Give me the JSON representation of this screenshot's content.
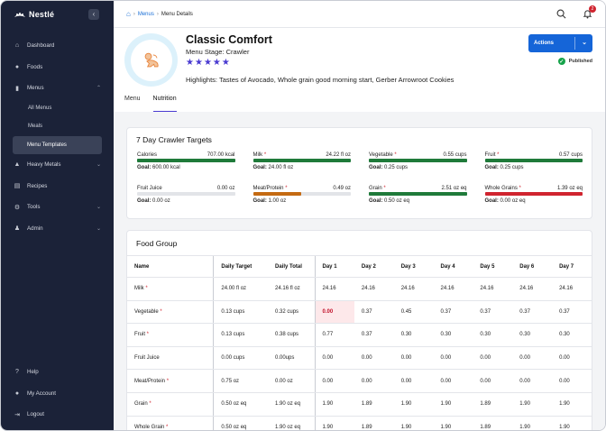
{
  "brand": {
    "name": "Nestlé"
  },
  "sidebar": {
    "items": [
      {
        "label": "Dashboard",
        "icon": "home-icon"
      },
      {
        "label": "Foods",
        "icon": "apple-icon"
      },
      {
        "label": "Menus",
        "icon": "book-icon",
        "expanded": true
      }
    ],
    "sub_items": [
      {
        "label": "All Menus"
      },
      {
        "label": "Meals"
      },
      {
        "label": "Menu Templates",
        "active": true
      }
    ],
    "items_after": [
      {
        "label": "Heavy Metals",
        "icon": "flask-icon"
      },
      {
        "label": "Recipes",
        "icon": "recipe-icon"
      },
      {
        "label": "Tools",
        "icon": "gear-icon"
      },
      {
        "label": "Admin",
        "icon": "users-icon"
      }
    ],
    "bottom": [
      {
        "label": "Help",
        "icon": "help-icon"
      },
      {
        "label": "My Account",
        "icon": "person-icon"
      },
      {
        "label": "Logout",
        "icon": "logout-icon"
      }
    ]
  },
  "breadcrumb": {
    "menus": "Menus",
    "current": "Menu Details"
  },
  "notifications": {
    "count": "2"
  },
  "menu": {
    "title": "Classic Comfort",
    "stage": "Menu Stage: Crawler",
    "rating": 5,
    "highlights": "Highlights: Tastes of Avocado, Whole grain good morning start, Gerber Arrowroot Cookies",
    "actions_label": "Actions",
    "status": "Published"
  },
  "tabs": [
    {
      "label": "Menu",
      "active": false
    },
    {
      "label": "Nutrition",
      "active": true
    }
  ],
  "targets": {
    "title": "7 Day Crawler Targets",
    "items": [
      {
        "label": "Calories",
        "req": false,
        "value": "707.00 kcal",
        "goal": "600.00 kcal",
        "progress": 1.0,
        "color": "#1f7a3a"
      },
      {
        "label": "Milk",
        "req": true,
        "value": "24.22 fl oz",
        "goal": "24.00 fl oz",
        "progress": 1.0,
        "color": "#1f7a3a"
      },
      {
        "label": "Vegetable",
        "req": true,
        "value": "0.55 cups",
        "goal": "0.25 cups",
        "progress": 1.0,
        "color": "#1f7a3a"
      },
      {
        "label": "Fruit",
        "req": true,
        "value": "0.57 cups",
        "goal": "0.25 cups",
        "progress": 1.0,
        "color": "#1f7a3a"
      },
      {
        "label": "Fruit Juice",
        "req": false,
        "value": "0.00 oz",
        "goal": "0.00 oz",
        "progress": 0.0,
        "color": "#1f7a3a"
      },
      {
        "label": "Meat/Protein",
        "req": true,
        "value": "0.49 oz",
        "goal": "1.00 oz",
        "progress": 0.49,
        "color": "#c46a12"
      },
      {
        "label": "Grain",
        "req": true,
        "value": "2.51 oz eq",
        "goal": "0.50 oz eq",
        "progress": 1.0,
        "color": "#1f7a3a"
      },
      {
        "label": "Whole Grains",
        "req": true,
        "value": "1.39 oz eq",
        "goal": "0.00 oz eq",
        "progress": 1.0,
        "color": "#d0242f"
      }
    ],
    "goal_label": "Goal:"
  },
  "food_group": {
    "title": "Food Group",
    "columns": [
      "Name",
      "Daily Target",
      "Daily Total",
      "Day 1",
      "Day 2",
      "Day 3",
      "Day 4",
      "Day 5",
      "Day 6",
      "Day 7"
    ],
    "rows": [
      {
        "name": "Milk",
        "req": true,
        "target": "24.00 fl oz",
        "total": "24.16 fl oz",
        "days": [
          "24.16",
          "24.16",
          "24.16",
          "24.16",
          "24.16",
          "24.16",
          "24.16"
        ],
        "warn_day": -1
      },
      {
        "name": "Vegetable",
        "req": true,
        "target": "0.13 cups",
        "total": "0.32 cups",
        "days": [
          "0.00",
          "0.37",
          "0.45",
          "0.37",
          "0.37",
          "0.37",
          "0.37"
        ],
        "warn_day": 0
      },
      {
        "name": "Fruit",
        "req": true,
        "target": "0.13 cups",
        "total": "0.38 cups",
        "days": [
          "0.77",
          "0.37",
          "0.30",
          "0.30",
          "0.30",
          "0.30",
          "0.30"
        ],
        "warn_day": -1
      },
      {
        "name": "Fruit Juice",
        "req": false,
        "target": "0.00 cups",
        "total": "0.00ups",
        "days": [
          "0.00",
          "0.00",
          "0.00",
          "0.00",
          "0.00",
          "0.00",
          "0.00"
        ],
        "warn_day": -1
      },
      {
        "name": "Meat/Protein",
        "req": true,
        "target": "0.75 oz",
        "total": "0.00 oz",
        "days": [
          "0.00",
          "0.00",
          "0.00",
          "0.00",
          "0.00",
          "0.00",
          "0.00"
        ],
        "warn_day": -1
      },
      {
        "name": "Grain",
        "req": true,
        "target": "0.50 oz eq",
        "total": "1.90 oz eq",
        "days": [
          "1.90",
          "1.89",
          "1.90",
          "1.90",
          "1.89",
          "1.90",
          "1.90"
        ],
        "warn_day": -1
      },
      {
        "name": "Whole Grain",
        "req": true,
        "target": "0.50 oz eq",
        "total": "1.90 oz eq",
        "days": [
          "1.90",
          "1.89",
          "1.90",
          "1.90",
          "1.89",
          "1.90",
          "1.90"
        ],
        "warn_day": -1
      }
    ]
  }
}
